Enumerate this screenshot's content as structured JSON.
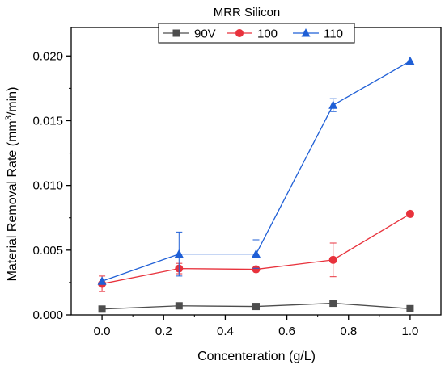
{
  "chart_data": {
    "type": "line",
    "title": "",
    "xlabel": "Concenteration (g/L)",
    "ylabel": "Material Removal Rate (mm³/min)",
    "ylabel_parts": {
      "before": "Material Removal Rate (mm",
      "sup": "3",
      "after": "/min)"
    },
    "xlim": [
      -0.1,
      1.1
    ],
    "ylim": [
      0.0,
      0.0222
    ],
    "x_ticks": [
      0.0,
      0.2,
      0.4,
      0.6,
      0.8,
      1.0
    ],
    "x_tick_labels": [
      "0.0",
      "0.2",
      "0.4",
      "0.6",
      "0.8",
      "1.0"
    ],
    "y_ticks": [
      0.0,
      0.005,
      0.01,
      0.015,
      0.02
    ],
    "y_tick_labels": [
      "0.000",
      "0.005",
      "0.010",
      "0.015",
      "0.020"
    ],
    "grid": false,
    "legend": {
      "title": "MRR Silicon",
      "placement": "top-center",
      "orientation": "horizontal"
    },
    "x": [
      0.0,
      0.25,
      0.5,
      0.75,
      1.0
    ],
    "series": [
      {
        "name": "90V",
        "color": "#4d4d4d",
        "marker": "square",
        "values": [
          0.00045,
          0.0007,
          0.00065,
          0.0009,
          0.00048
        ],
        "errors": [
          0.0,
          0.0,
          0.0,
          0.0,
          0.0
        ]
      },
      {
        "name": "100",
        "color": "#e8323c",
        "marker": "circle",
        "values": [
          0.0024,
          0.00358,
          0.00352,
          0.00425,
          0.0078
        ],
        "errors": [
          0.0006,
          0.0004,
          0.0,
          0.0013,
          0.0002
        ]
      },
      {
        "name": "110",
        "color": "#1f5fd6",
        "marker": "triangle",
        "values": [
          0.0026,
          0.0047,
          0.0047,
          0.0162,
          0.0196
        ],
        "errors": [
          0.0,
          0.0017,
          0.0011,
          0.0005,
          0.0
        ]
      }
    ]
  }
}
